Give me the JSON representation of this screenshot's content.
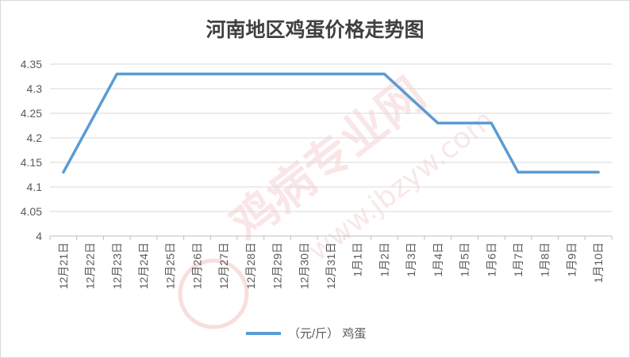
{
  "chart_data": {
    "type": "line",
    "title": "河南地区鸡蛋价格走势图",
    "categories": [
      "12月21日",
      "12月22日",
      "12月23日",
      "12月24日",
      "12月25日",
      "12月26日",
      "12月27日",
      "12月28日",
      "12月29日",
      "12月30日",
      "12月31日",
      "1月1日",
      "1月2日",
      "1月3日",
      "1月4日",
      "1月5日",
      "1月6日",
      "1月7日",
      "1月8日",
      "1月9日",
      "1月10日"
    ],
    "series": [
      {
        "name": "（元/斤）  鸡蛋",
        "color": "#5b9bd5",
        "values": [
          4.13,
          4.23,
          4.33,
          4.33,
          4.33,
          4.33,
          4.33,
          4.33,
          4.33,
          4.33,
          4.33,
          4.33,
          4.33,
          4.28,
          4.23,
          4.23,
          4.23,
          4.13,
          4.13,
          4.13,
          4.13
        ]
      }
    ],
    "yticks": [
      "4",
      "4.05",
      "4.1",
      "4.15",
      "4.2",
      "4.25",
      "4.3",
      "4.35"
    ],
    "ylim": [
      4,
      4.35
    ],
    "grid": true,
    "legend_position": "bottom",
    "watermark": {
      "cn": "鸡病专业网",
      "url": "www.jbzyw.com"
    }
  }
}
